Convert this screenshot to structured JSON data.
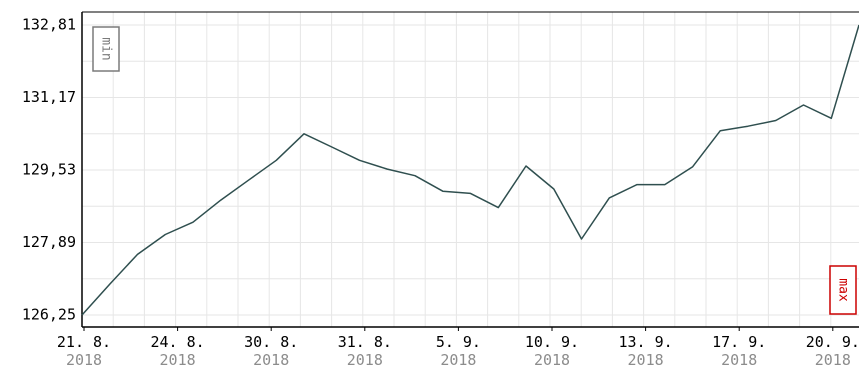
{
  "chart_data": {
    "type": "line",
    "title": "",
    "xlabel": "",
    "ylabel": "",
    "grid": true,
    "ylim": [
      126.25,
      132.81
    ],
    "y_ticks": [
      "132,81",
      "131,17",
      "129,53",
      "127,89",
      "126,25"
    ],
    "y_tick_values": [
      132.81,
      131.17,
      129.53,
      127.89,
      126.25
    ],
    "x_ticks": [
      {
        "top": "21. 8.",
        "bottom": "2018"
      },
      {
        "top": "24. 8.",
        "bottom": "2018"
      },
      {
        "top": "30. 8.",
        "bottom": "2018"
      },
      {
        "top": "31. 8.",
        "bottom": "2018"
      },
      {
        "top": "5. 9.",
        "bottom": "2018"
      },
      {
        "top": "10. 9.",
        "bottom": "2018"
      },
      {
        "top": "13. 9.",
        "bottom": "2018"
      },
      {
        "top": "17. 9.",
        "bottom": "2018"
      },
      {
        "top": "20. 9.",
        "bottom": "2018"
      }
    ],
    "series": [
      {
        "values": [
          126.25,
          126.95,
          127.62,
          128.07,
          128.35,
          128.85,
          129.3,
          129.75,
          130.35,
          130.05,
          129.75,
          129.55,
          129.4,
          129.05,
          129.0,
          128.68,
          129.62,
          129.1,
          127.97,
          128.9,
          129.2,
          129.2,
          129.6,
          130.42,
          130.52,
          130.65,
          131.0,
          130.7,
          132.81
        ]
      }
    ],
    "markers": {
      "min_label": "min",
      "max_label": "max"
    },
    "colors": {
      "line": "#2f4f4f",
      "grid": "#e6e6e6",
      "axis": "#000000",
      "min_marker": "#7a7a7a",
      "max_marker": "#cc0000"
    }
  }
}
